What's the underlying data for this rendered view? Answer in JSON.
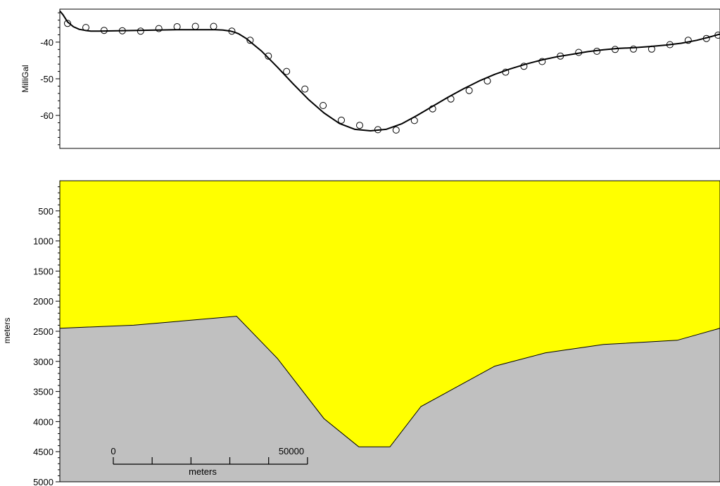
{
  "colors": {
    "sediment": "#ffff00",
    "basement": "#c0c0c0",
    "line": "#000000",
    "background": "#ffffff"
  },
  "chart_data": [
    {
      "type": "line",
      "ylabel": "MilliGal",
      "xlim": [
        0,
        170000
      ],
      "ylim": [
        -69,
        -31
      ],
      "yticks": [
        -40,
        -50,
        -60
      ],
      "grid": false,
      "series": [
        {
          "role": "calculated",
          "style": "line",
          "x": [
            0,
            800,
            2000,
            3500,
            5000,
            6500,
            8000,
            10000,
            15000,
            20000,
            25000,
            30000,
            35000,
            40000,
            42000,
            44000,
            45000,
            46000,
            48000,
            52000,
            56000,
            60000,
            64000,
            68000,
            72000,
            76000,
            80000,
            84000,
            88000,
            92000,
            96000,
            100000,
            104000,
            108000,
            112000,
            116000,
            120000,
            124000,
            128000,
            132000,
            136000,
            140000,
            144000,
            148000,
            152000,
            156000,
            160000,
            164000,
            168000,
            170000
          ],
          "y": [
            -31.5,
            -32.5,
            -34.5,
            -35.8,
            -36.5,
            -36.8,
            -37.0,
            -37.0,
            -36.9,
            -36.8,
            -36.7,
            -36.6,
            -36.6,
            -36.6,
            -36.7,
            -37.0,
            -37.3,
            -37.7,
            -39.0,
            -42.5,
            -46.8,
            -51.3,
            -55.6,
            -59.3,
            -62.2,
            -63.8,
            -64.2,
            -63.8,
            -62.3,
            -60.0,
            -57.5,
            -55.0,
            -52.7,
            -50.6,
            -48.8,
            -47.3,
            -46.0,
            -44.9,
            -44.0,
            -43.3,
            -42.6,
            -42.1,
            -41.7,
            -41.5,
            -41.2,
            -40.8,
            -40.3,
            -39.5,
            -38.4,
            -37.8
          ]
        },
        {
          "role": "observed",
          "style": "open-circles",
          "x": [
            2000,
            6700,
            11400,
            16100,
            20800,
            25500,
            30200,
            34900,
            39600,
            44300,
            49000,
            53700,
            58400,
            63100,
            67800,
            72500,
            77200,
            81900,
            86600,
            91300,
            96000,
            100700,
            105400,
            110100,
            114800,
            119500,
            124200,
            128900,
            133600,
            138300,
            143000,
            147700,
            152400,
            157100,
            161800,
            166500,
            169500
          ],
          "y": [
            -34.9,
            -36.0,
            -36.8,
            -36.9,
            -37.0,
            -36.3,
            -35.8,
            -35.7,
            -35.7,
            -37.0,
            -39.5,
            -43.8,
            -48.0,
            -52.8,
            -57.3,
            -61.3,
            -62.7,
            -63.9,
            -64.0,
            -61.4,
            -58.2,
            -55.5,
            -53.2,
            -50.6,
            -48.2,
            -46.6,
            -45.3,
            -43.8,
            -42.8,
            -42.5,
            -42.0,
            -41.9,
            -41.9,
            -40.7,
            -39.5,
            -39.0,
            -38.1
          ]
        }
      ]
    },
    {
      "type": "area",
      "ylabel": "meters",
      "xlim": [
        0,
        170000
      ],
      "ylim": [
        5000,
        0
      ],
      "yticks": [
        500,
        1000,
        1500,
        2000,
        2500,
        3000,
        3500,
        4000,
        4500,
        5000
      ],
      "grid": false,
      "layers": [
        {
          "role": "upper-layer",
          "color": "#ffff00"
        },
        {
          "role": "lower-layer",
          "color": "#c0c0c0",
          "boundary_x": [
            0,
            19000,
            45500,
            56000,
            68000,
            77000,
            85000,
            93000,
            112000,
            125000,
            140000,
            159000,
            170000
          ],
          "boundary_depth": [
            2450,
            2400,
            2250,
            2950,
            3950,
            4420,
            4420,
            3750,
            3080,
            2860,
            2720,
            2650,
            2450
          ]
        }
      ],
      "scale_bar": {
        "start_label": "0",
        "end_label": "50000",
        "unit_label": "meters",
        "length": 50000,
        "divisions": 5
      }
    }
  ]
}
